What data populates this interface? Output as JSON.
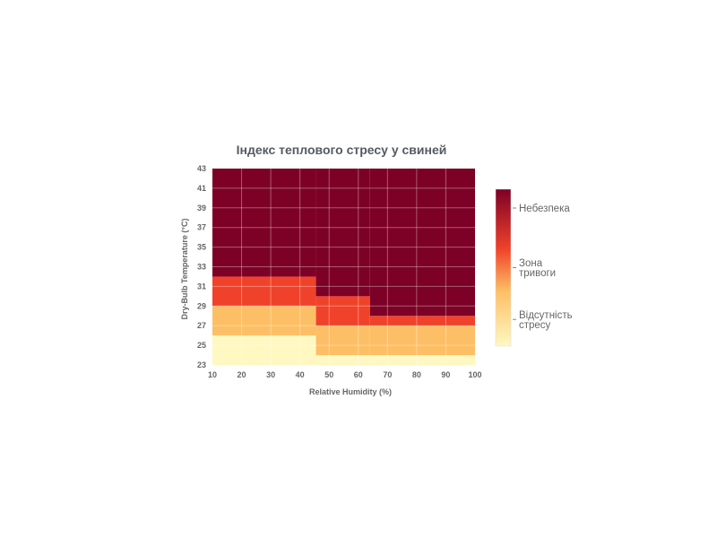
{
  "chart_data": {
    "type": "heatmap",
    "title": "Індекс теплового стресу у свиней",
    "xlabel": "Relative Humidity (%)",
    "ylabel": "Dry-Bulb Temperature (°C)",
    "xlim": [
      10,
      100
    ],
    "ylim": [
      23,
      43
    ],
    "x_ticks": [
      "10",
      "20",
      "30",
      "40",
      "50",
      "60",
      "70",
      "80",
      "90",
      "100"
    ],
    "y_ticks": [
      "23",
      "25",
      "27",
      "29",
      "31",
      "33",
      "35",
      "37",
      "39",
      "41",
      "43"
    ],
    "grid": true,
    "zones": [
      {
        "x0": 10,
        "x1": 45.5,
        "y0": 23,
        "y1": 26,
        "level": 0
      },
      {
        "x0": 10,
        "x1": 45.5,
        "y0": 26,
        "y1": 29,
        "level": 1
      },
      {
        "x0": 10,
        "x1": 45.5,
        "y0": 29,
        "y1": 32,
        "level": 2
      },
      {
        "x0": 10,
        "x1": 45.5,
        "y0": 32,
        "y1": 43,
        "level": 3
      },
      {
        "x0": 45.5,
        "x1": 64,
        "y0": 23,
        "y1": 24,
        "level": 0
      },
      {
        "x0": 45.5,
        "x1": 64,
        "y0": 24,
        "y1": 27,
        "level": 1
      },
      {
        "x0": 45.5,
        "x1": 64,
        "y0": 27,
        "y1": 30,
        "level": 2
      },
      {
        "x0": 45.5,
        "x1": 64,
        "y0": 30,
        "y1": 43,
        "level": 3
      },
      {
        "x0": 64,
        "x1": 100,
        "y0": 23,
        "y1": 24,
        "level": 0
      },
      {
        "x0": 64,
        "x1": 100,
        "y0": 24,
        "y1": 27,
        "level": 1
      },
      {
        "x0": 64,
        "x1": 100,
        "y0": 27,
        "y1": 28,
        "level": 2
      },
      {
        "x0": 64,
        "x1": 100,
        "y0": 28,
        "y1": 43,
        "level": 3
      }
    ],
    "level_colors": [
      "#fff8c2",
      "#fdbf66",
      "#f0422a",
      "#7d0026"
    ],
    "colorbar": {
      "gradient": [
        "#fff8c2",
        "#fdbf66",
        "#f0422a",
        "#7d0026"
      ],
      "labels": [
        {
          "text": [
            "Небезпека"
          ],
          "value": 0.88
        },
        {
          "text": [
            "Зона",
            "тривоги"
          ],
          "value": 0.5
        },
        {
          "text": [
            "Відсутність",
            "стресу"
          ],
          "value": 0.17
        }
      ]
    }
  }
}
